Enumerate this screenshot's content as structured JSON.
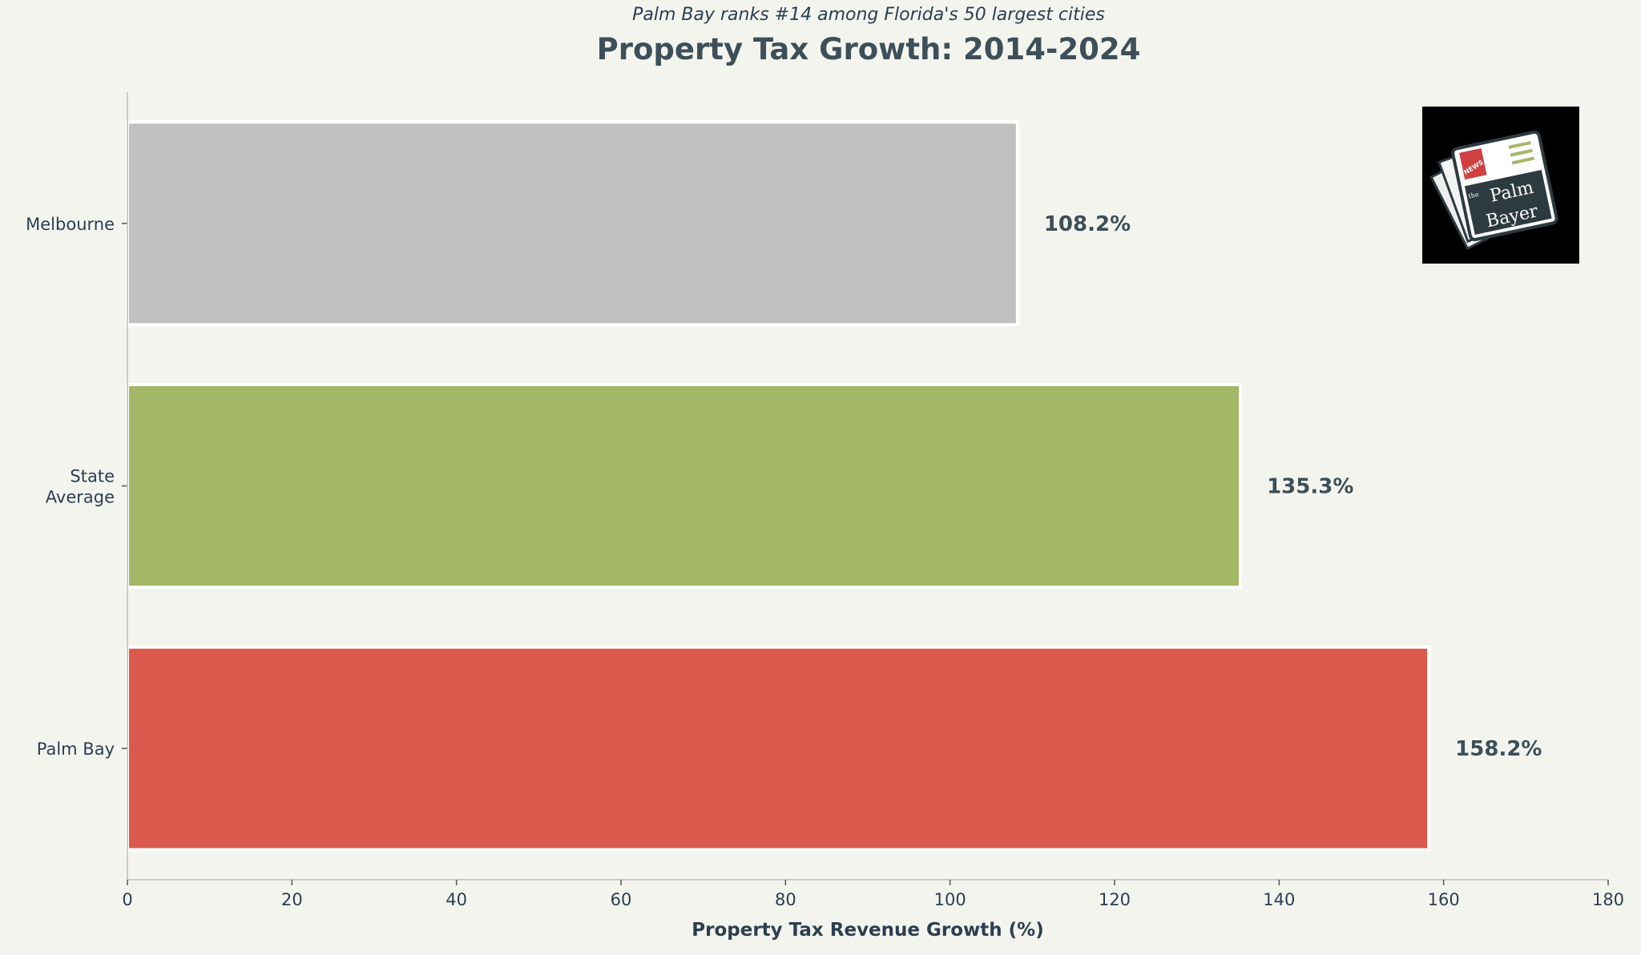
{
  "chart_data": {
    "type": "bar",
    "orientation": "horizontal",
    "title": "Property Tax Growth: 2014-2024",
    "subtitle": "Palm Bay ranks #14 among Florida's 50 largest cities",
    "xlabel": "Property Tax Revenue Growth (%)",
    "ylabel": "",
    "xlim": [
      0,
      180
    ],
    "xticks": [
      0,
      20,
      40,
      60,
      80,
      100,
      120,
      140,
      160,
      180
    ],
    "grid": false,
    "categories": [
      "Melbourne",
      "State\nAverage",
      "Palm Bay"
    ],
    "values": [
      108.2,
      135.3,
      158.2
    ],
    "data_labels": [
      "108.2%",
      "135.3%",
      "158.2%"
    ],
    "colors": [
      "#c0c0c0",
      "#a4b868",
      "#d95a4c"
    ]
  },
  "logo": {
    "text": "the Palm Bayer",
    "badge": "NEWS"
  }
}
